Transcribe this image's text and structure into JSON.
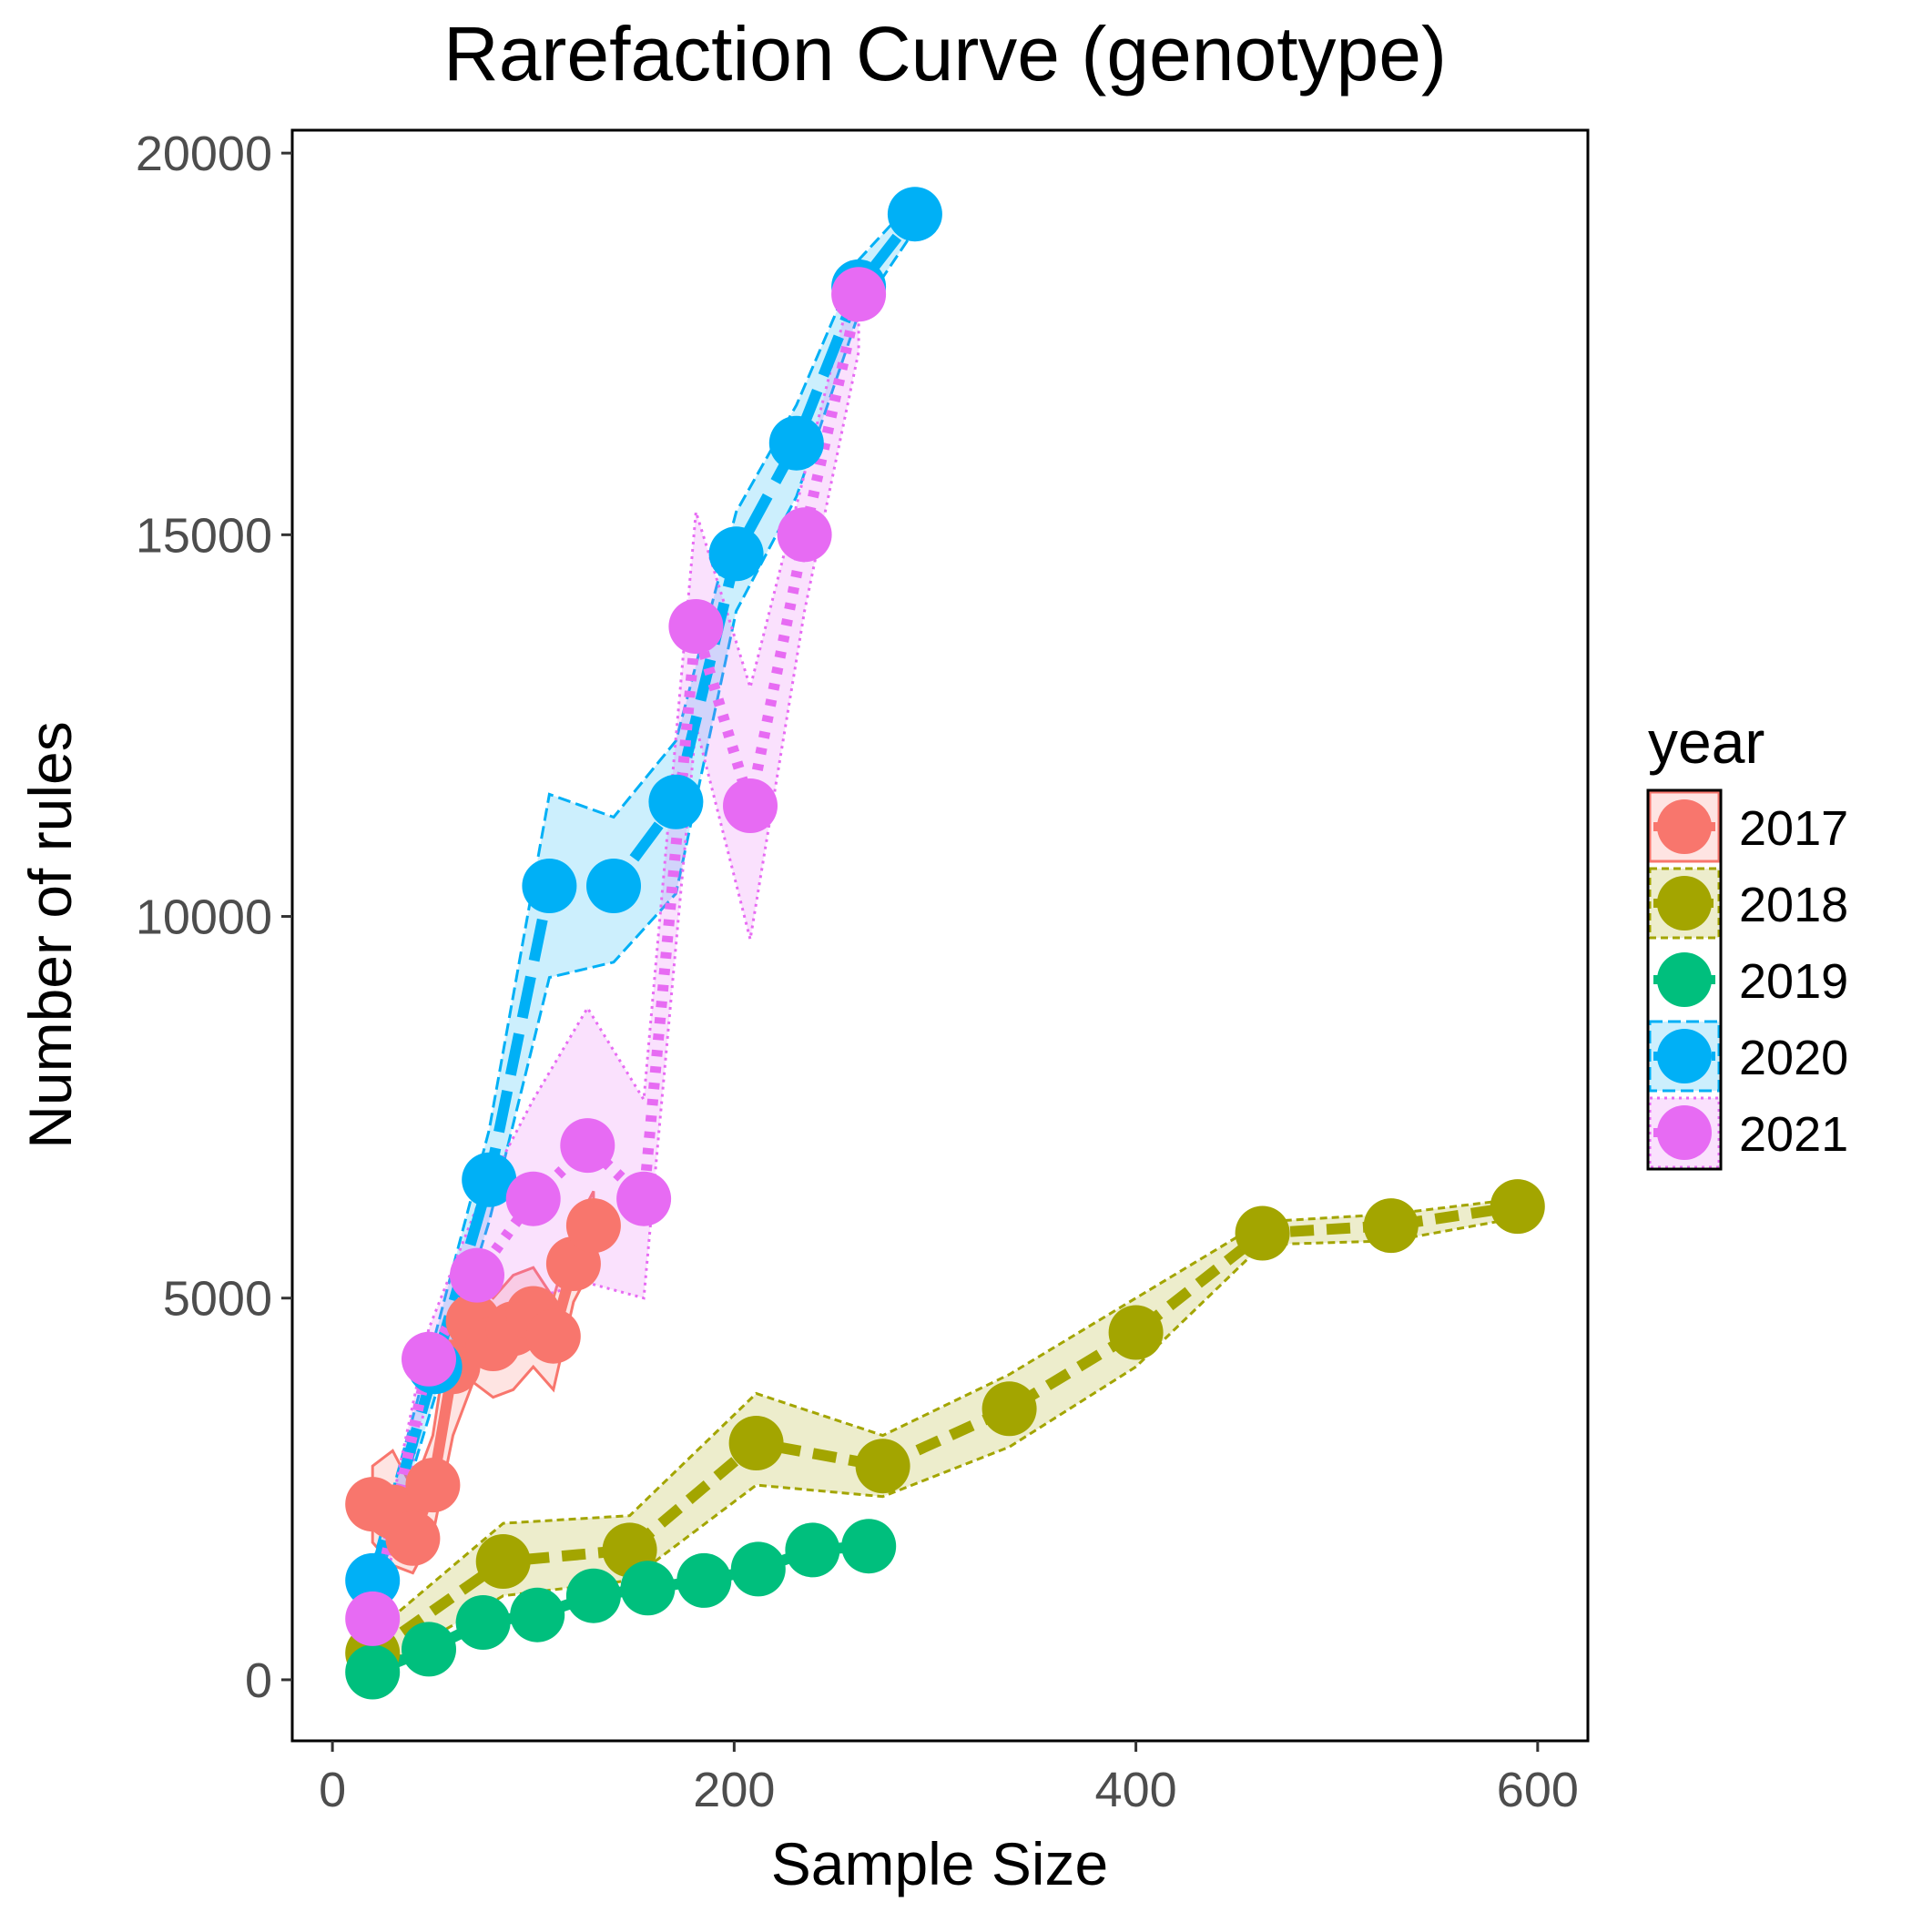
{
  "chart_data": {
    "type": "line",
    "title": "Rarefaction Curve (genotype)",
    "xlabel": "Sample Size",
    "ylabel": "Number of rules",
    "xlim": [
      -20,
      625
    ],
    "ylim": [
      -800,
      20300
    ],
    "xticks": [
      0,
      200,
      400,
      600
    ],
    "yticks": [
      0,
      5000,
      10000,
      15000,
      20000
    ],
    "grid": false,
    "legend": {
      "title": "year",
      "position": "right"
    },
    "series": [
      {
        "name": "2017",
        "color": "#F8766D",
        "line": "solid",
        "x": [
          20,
          30,
          40,
          50,
          60,
          70,
          80,
          90,
          100,
          110,
          120,
          130
        ],
        "y": [
          2300,
          2200,
          1850,
          2550,
          4100,
          4700,
          4400,
          4600,
          4800,
          4500,
          5450,
          5950
        ],
        "ribbon_lower": [
          1800,
          1500,
          1400,
          1900,
          3200,
          3900,
          3700,
          3800,
          4100,
          3800,
          4950,
          5450
        ],
        "ribbon_upper": [
          2800,
          3000,
          2500,
          3200,
          4900,
          5200,
          5000,
          5300,
          5400,
          5000,
          5900,
          6400
        ]
      },
      {
        "name": "2018",
        "color": "#A3A500",
        "line": "dashed",
        "x": [
          20,
          85,
          148,
          211,
          274,
          337,
          400,
          463,
          527,
          590
        ],
        "y": [
          350,
          1550,
          1700,
          3100,
          2800,
          3550,
          4550,
          5850,
          5950,
          6200
        ],
        "ribbon_lower": [
          100,
          1100,
          1300,
          2550,
          2400,
          3050,
          4100,
          5700,
          5750,
          6050
        ],
        "ribbon_upper": [
          600,
          2050,
          2150,
          3750,
          3200,
          4000,
          5000,
          6000,
          6100,
          6300
        ]
      },
      {
        "name": "2019",
        "color": "#00BF7D",
        "line": "solid",
        "x": [
          20,
          48,
          75,
          102,
          130,
          157,
          185,
          212,
          239,
          267
        ],
        "y": [
          100,
          400,
          750,
          850,
          1100,
          1200,
          1300,
          1450,
          1700,
          1750
        ]
      },
      {
        "name": "2020",
        "color": "#00B0F6",
        "line": "longdash",
        "x": [
          20,
          51,
          78,
          108,
          140,
          171,
          201,
          231,
          262,
          290
        ],
        "y": [
          1300,
          4100,
          6550,
          10400,
          10400,
          11500,
          14750,
          16200,
          18250,
          19200
        ],
        "ribbon_lower": [
          1000,
          3700,
          6000,
          9200,
          9400,
          10300,
          14000,
          15500,
          17900,
          19000
        ],
        "ribbon_upper": [
          1500,
          4500,
          7200,
          11600,
          11300,
          12300,
          15300,
          16700,
          18600,
          19400
        ]
      },
      {
        "name": "2021",
        "color": "#E76BF3",
        "line": "dotted",
        "x": [
          20,
          48,
          72,
          100,
          127,
          155,
          181,
          208,
          235,
          262
        ],
        "y": [
          800,
          4200,
          5300,
          6300,
          7000,
          6300,
          13800,
          11450,
          15000,
          18150
        ],
        "ribbon_lower": [
          500,
          3800,
          4600,
          5000,
          5200,
          5000,
          12500,
          9700,
          14000,
          17400
        ],
        "ribbon_upper": [
          1100,
          4600,
          6200,
          7600,
          8800,
          7600,
          15300,
          13000,
          15800,
          18600
        ]
      }
    ]
  }
}
